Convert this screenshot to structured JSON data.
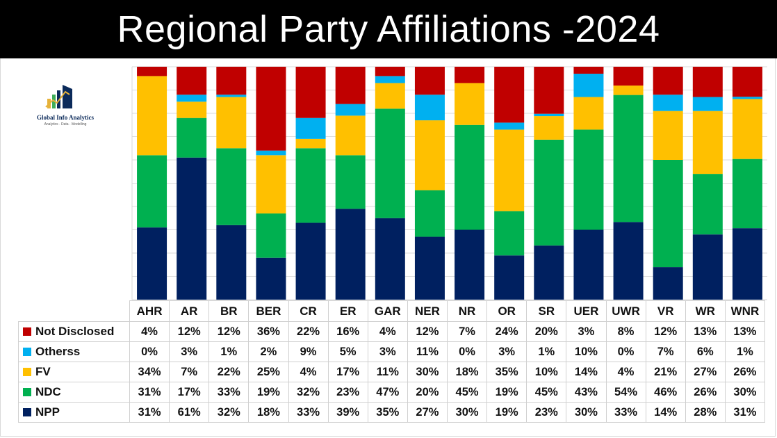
{
  "title": "Regional Party Affiliations -2024",
  "logo": {
    "name": "Global Info Analytics",
    "tagline": "Analytics · Data · Modelling"
  },
  "chart_data": {
    "type": "bar",
    "stacked": true,
    "normalized_percent": true,
    "title": "Regional Party Affiliations -2024",
    "categories": [
      "AHR",
      "AR",
      "BR",
      "BER",
      "CR",
      "ER",
      "GAR",
      "NER",
      "NR",
      "OR",
      "SR",
      "UER",
      "UWR",
      "VR",
      "WR",
      "WNR"
    ],
    "series": [
      {
        "name": "Not Disclosed",
        "color": "#C00000",
        "values": [
          4,
          12,
          12,
          36,
          22,
          16,
          4,
          12,
          7,
          24,
          20,
          3,
          8,
          12,
          13,
          13
        ]
      },
      {
        "name": "Otherss",
        "color": "#00B0F0",
        "values": [
          0,
          3,
          1,
          2,
          9,
          5,
          3,
          11,
          0,
          3,
          1,
          10,
          0,
          7,
          6,
          1
        ]
      },
      {
        "name": "FV",
        "color": "#FFC000",
        "values": [
          34,
          7,
          22,
          25,
          4,
          17,
          11,
          30,
          18,
          35,
          10,
          14,
          4,
          21,
          27,
          26
        ]
      },
      {
        "name": "NDC",
        "color": "#00B050",
        "values": [
          31,
          17,
          33,
          19,
          32,
          23,
          47,
          20,
          45,
          19,
          45,
          43,
          54,
          46,
          26,
          30
        ]
      },
      {
        "name": "NPP",
        "color": "#002060",
        "values": [
          31,
          61,
          32,
          18,
          33,
          39,
          35,
          27,
          30,
          19,
          23,
          30,
          33,
          14,
          28,
          31
        ]
      }
    ],
    "stack_order_bottom_to_top": [
      "NPP",
      "NDC",
      "FV",
      "Otherss",
      "Not Disclosed"
    ],
    "ylim": [
      0,
      100
    ],
    "grid": true,
    "legend": "data-table-below",
    "data_table": true,
    "value_suffix": "%"
  }
}
